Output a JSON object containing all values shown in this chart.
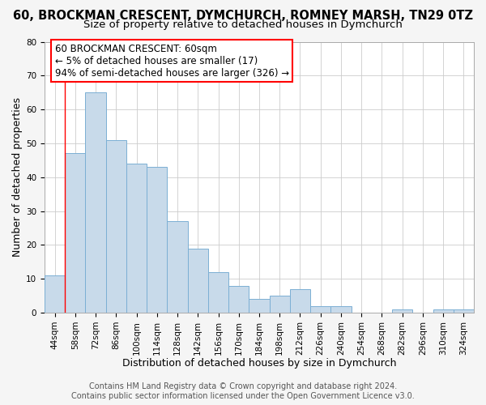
{
  "title1": "60, BROCKMAN CRESCENT, DYMCHURCH, ROMNEY MARSH, TN29 0TZ",
  "title2": "Size of property relative to detached houses in Dymchurch",
  "xlabel": "Distribution of detached houses by size in Dymchurch",
  "ylabel": "Number of detached properties",
  "categories": [
    "44sqm",
    "58sqm",
    "72sqm",
    "86sqm",
    "100sqm",
    "114sqm",
    "128sqm",
    "142sqm",
    "156sqm",
    "170sqm",
    "184sqm",
    "198sqm",
    "212sqm",
    "226sqm",
    "240sqm",
    "254sqm",
    "268sqm",
    "282sqm",
    "296sqm",
    "310sqm",
    "324sqm"
  ],
  "values": [
    11,
    47,
    65,
    51,
    44,
    43,
    27,
    19,
    12,
    8,
    4,
    5,
    7,
    2,
    2,
    0,
    0,
    1,
    0,
    1,
    1
  ],
  "bar_color": "#c8daea",
  "bar_edge_color": "#7bafd4",
  "ylim": [
    0,
    80
  ],
  "yticks": [
    0,
    10,
    20,
    30,
    40,
    50,
    60,
    70,
    80
  ],
  "marker_label": "60 BROCKMAN CRESCENT: 60sqm",
  "annotation_line1": "← 5% of detached houses are smaller (17)",
  "annotation_line2": "94% of semi-detached houses are larger (326) →",
  "footer1": "Contains HM Land Registry data © Crown copyright and database right 2024.",
  "footer2": "Contains public sector information licensed under the Open Government Licence v3.0.",
  "bg_color": "#f5f5f5",
  "plot_bg_color": "#ffffff",
  "grid_color": "#cccccc",
  "title1_fontsize": 10.5,
  "title2_fontsize": 9.5,
  "axis_label_fontsize": 9,
  "tick_fontsize": 7.5,
  "annotation_fontsize": 8.5,
  "footer_fontsize": 7
}
